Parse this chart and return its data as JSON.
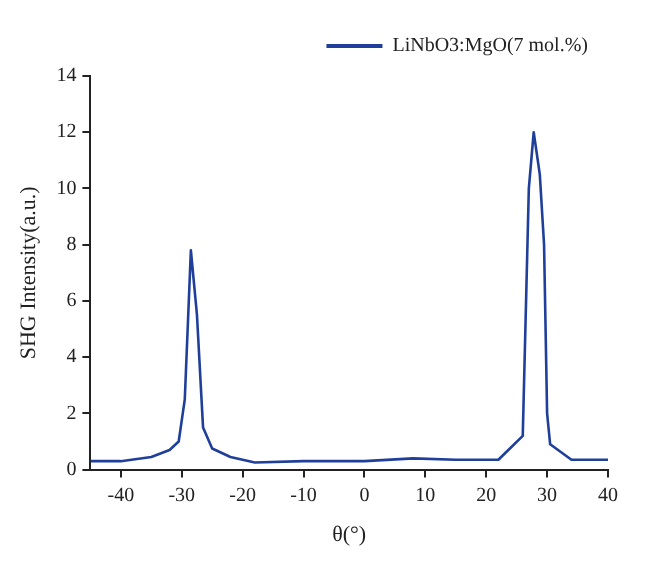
{
  "chart_data": {
    "type": "line",
    "xlabel": "θ(°)",
    "ylabel": "SHG Intensity(a.u.)",
    "series": [
      {
        "name": "LiNbO3:MgO(7 mol.%)",
        "color": "#1f3f9a",
        "x": [
          -45,
          -40,
          -35,
          -32,
          -30.5,
          -29.5,
          -28.5,
          -27.5,
          -26.5,
          -25,
          -22,
          -18,
          -10,
          0,
          8,
          15,
          22,
          26,
          27,
          27.8,
          28.8,
          29.5,
          30,
          30.5,
          34,
          40
        ],
        "values": [
          0.3,
          0.3,
          0.45,
          0.7,
          1.0,
          2.5,
          7.8,
          5.5,
          1.5,
          0.75,
          0.45,
          0.25,
          0.3,
          0.3,
          0.4,
          0.35,
          0.35,
          1.2,
          10,
          12,
          10.5,
          8,
          2,
          0.9,
          0.35,
          0.35
        ]
      }
    ],
    "xlim": [
      -45,
      40
    ],
    "xticks": [
      -40,
      -30,
      -20,
      -10,
      0,
      10,
      20,
      30,
      40
    ],
    "ylim": [
      0,
      14
    ],
    "yticks": [
      0,
      2,
      4,
      6,
      8,
      10,
      12,
      14
    ],
    "grid": false,
    "legend": "top right",
    "marker": "none",
    "line_style": "solid"
  }
}
